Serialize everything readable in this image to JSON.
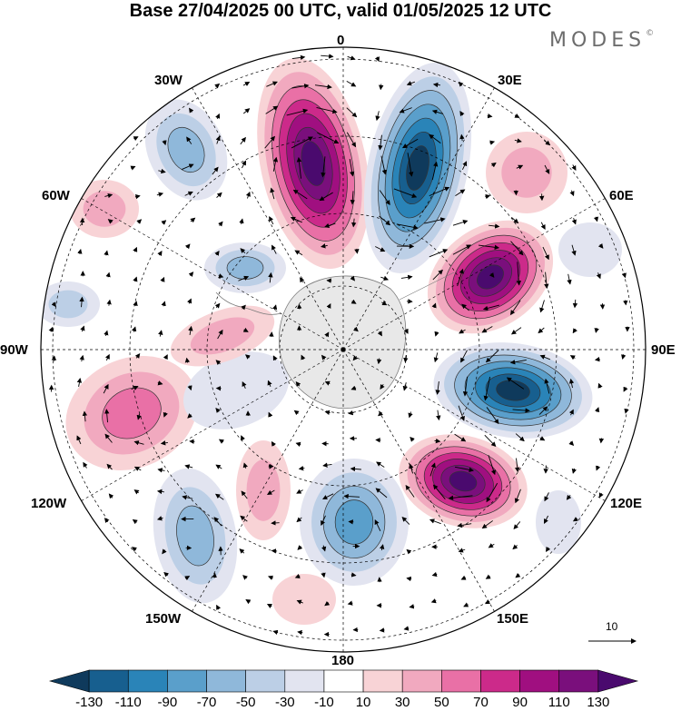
{
  "header": {
    "title": "Base 27/04/2025 00 UTC, valid 01/05/2025 12 UTC",
    "logo": "MODES"
  },
  "map": {
    "projection": "south polar stereographic",
    "longitude_labels": {
      "lon_0": "0",
      "lon_30e": "30E",
      "lon_60e": "60E",
      "lon_90e": "90E",
      "lon_120e": "120E",
      "lon_150e": "150E",
      "lon_180": "180",
      "lon_150w": "150W",
      "lon_120w": "120W",
      "lon_90w": "90W",
      "lon_60w": "60W",
      "lon_30w": "30W"
    },
    "reference_vector": "10",
    "colors": {
      "positive_max": "#4a0a6e",
      "negative_max": "#0f3a5c",
      "land": "#e8e8e8",
      "neutral": "#ffffff"
    }
  },
  "colorbar": {
    "ticks": [
      "-130",
      "-110",
      "-90",
      "-70",
      "-50",
      "-30",
      "-10",
      "10",
      "30",
      "50",
      "70",
      "90",
      "110",
      "130"
    ],
    "colors": [
      "#0f3a5c",
      "#175f8f",
      "#2a84b8",
      "#5a9fcb",
      "#8fb8da",
      "#bccfe6",
      "#e2e4f0",
      "#ffffff",
      "#f8d3d6",
      "#f1a9bf",
      "#e970a6",
      "#cc2a8a",
      "#a00f80",
      "#7a0f7c",
      "#4a0a6e"
    ]
  }
}
